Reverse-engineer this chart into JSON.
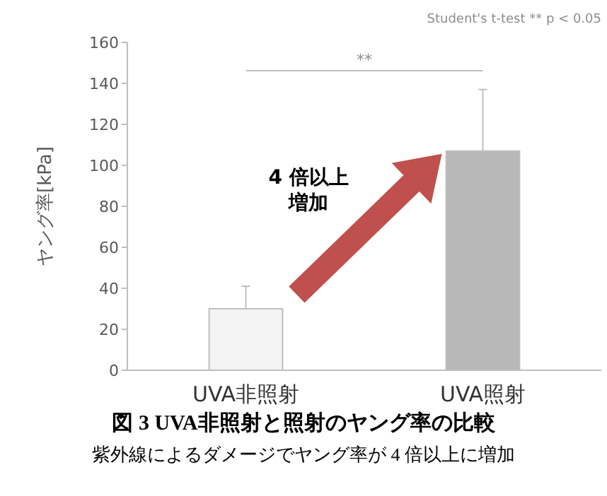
{
  "chart_data": {
    "type": "bar",
    "title": "図 3 UVA非照射と照射のヤング率の比較",
    "subtitle": "紫外線によるダメージでヤング率が 4 倍以上に増加",
    "ylabel": "ヤング率[kPa]",
    "categories": [
      "UVA非照射",
      "UVA照射"
    ],
    "values": [
      30,
      107
    ],
    "colors": [
      "#f3f3f3",
      "#b8b8b8"
    ],
    "errors": [
      [
        30,
        41
      ],
      [
        107,
        137
      ]
    ],
    "ylim": [
      0,
      160
    ],
    "yticks": [
      0,
      20,
      40,
      60,
      80,
      100,
      120,
      140,
      160
    ],
    "grid": false,
    "annotations": [
      "Student's t-test  ** p < 0.05",
      "**",
      "4 倍以上",
      "増加"
    ]
  }
}
